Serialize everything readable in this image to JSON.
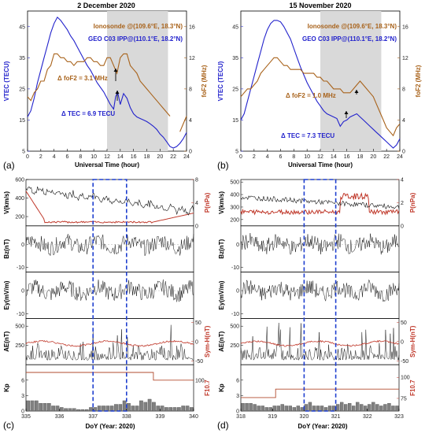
{
  "colors": {
    "vtec": "#2222cc",
    "fof2": "#a8621a",
    "shade": "#d9d9d9",
    "dashbox": "#1f3fcf",
    "left_axis": "#2a2acc",
    "right_axis": "#c0392b",
    "solar_right": "#b24b2f",
    "black": "#111111",
    "green": "#2e8b3e",
    "kp_bar": "#808080"
  },
  "chart_data": [
    {
      "type": "line",
      "panel": "(a)",
      "title": "2 December 2020",
      "xlabel": "Universal Time (hour)",
      "ylabel_left": "VTEC (TECU)",
      "ylabel_right": "foF2 (MHz)",
      "xlim": [
        0,
        24
      ],
      "ylim_left": [
        5,
        50
      ],
      "ylim_right": [
        0,
        18
      ],
      "xticks": [
        0,
        2,
        4,
        6,
        8,
        10,
        12,
        14,
        16,
        18,
        20,
        22,
        24
      ],
      "yticks_left": [
        5,
        15,
        25,
        35,
        45
      ],
      "yticks_right": [
        0,
        4,
        8,
        12,
        16
      ],
      "shade_range": [
        12,
        21.2
      ],
      "legend": [
        "Ionosonde @(109.6°E, 18.3°N)",
        "GEO C03 IPP@(110.1°E, 18.2°N)"
      ],
      "annotations": [
        "Δ foF2 = 3.1 MHz",
        "Δ TEC = 6.9 TECU"
      ],
      "series": [
        {
          "name": "GEO C03 IPP@(110.1°E, 18.2°N)",
          "axis": "left",
          "x": [
            0,
            0.5,
            1,
            1.5,
            2,
            2.5,
            3,
            3.5,
            4,
            4.5,
            5,
            5.5,
            6,
            6.5,
            7,
            7.5,
            8,
            8.5,
            9,
            9.5,
            10,
            10.5,
            11,
            11.5,
            12,
            12.5,
            13,
            13.3,
            13.6,
            14,
            14.5,
            15,
            15.5,
            16,
            16.5,
            17,
            17.5,
            18,
            18.5,
            19,
            19.5,
            20,
            20.5,
            21,
            21.5,
            22,
            22.5,
            23,
            23.5,
            24
          ],
          "values": [
            16,
            18,
            22,
            27,
            31,
            35,
            39,
            43,
            46,
            48,
            47,
            45.5,
            44,
            42,
            40.5,
            38.5,
            36.5,
            34.5,
            32.5,
            31,
            29,
            27,
            25.5,
            24,
            22,
            20,
            18.5,
            22.5,
            24,
            20,
            23.5,
            22,
            19,
            17,
            16,
            15.5,
            15,
            14.5,
            13.8,
            13,
            12,
            10.5,
            9.5,
            8,
            6.5,
            6,
            6.5,
            7.5,
            9,
            11
          ]
        },
        {
          "name": "Ionosonde @(109.6°E, 18.3°N)",
          "axis": "right",
          "x": [
            0,
            0.5,
            1,
            1.5,
            2,
            2.5,
            3,
            3.5,
            4,
            4.5,
            5,
            5.5,
            6,
            6.5,
            7,
            7.5,
            8,
            8.5,
            9,
            9.5,
            10,
            10.5,
            11,
            11.5,
            12,
            12.5,
            13,
            13.5,
            14,
            14.5,
            15,
            15.5,
            16,
            16.5,
            17,
            17.5,
            18,
            18.5,
            19,
            19.5,
            20,
            20.5,
            21,
            21.5,
            22,
            22.5,
            23,
            23.5,
            24
          ],
          "values": [
            7,
            6.5,
            7.5,
            8,
            9,
            9,
            10.5,
            11,
            12.5,
            12.5,
            12,
            12,
            11.5,
            11.5,
            11,
            11.5,
            11.5,
            11.5,
            12,
            12,
            11.5,
            11.5,
            11,
            11,
            12,
            12,
            11,
            10,
            12,
            12.5,
            12.5,
            11,
            10.5,
            10,
            9,
            8.5,
            8,
            7.5,
            7,
            6.5,
            6,
            5.5,
            5,
            4.5,
            null,
            null,
            2.5,
            3.5,
            4.5
          ]
        }
      ]
    },
    {
      "type": "line",
      "panel": "(b)",
      "title": "15 November 2020",
      "xlabel": "Universal Time (hour)",
      "ylabel_left": "VTEC (TECU)",
      "ylabel_right": "foF2 (MHz)",
      "xlim": [
        0,
        24
      ],
      "ylim_left": [
        5,
        50
      ],
      "ylim_right": [
        0,
        18
      ],
      "xticks": [
        0,
        2,
        4,
        6,
        8,
        10,
        12,
        14,
        16,
        18,
        20,
        22,
        24
      ],
      "yticks_left": [
        5,
        15,
        25,
        35,
        45
      ],
      "yticks_right": [
        0,
        4,
        8,
        12,
        16
      ],
      "shade_range": [
        12,
        21.2
      ],
      "legend": [
        "Ionosonde @(109.6°E, 18.3°N)",
        "GEO C03 IPP@(110.1°E, 18.2°N)"
      ],
      "annotations": [
        "Δ foF2 = 1.0 MHz",
        "Δ TEC = 7.3 TECU"
      ],
      "series": [
        {
          "name": "GEO C03 IPP@(110.1°E, 18.2°N)",
          "axis": "left",
          "x": [
            0,
            0.5,
            1,
            1.5,
            2,
            2.5,
            3,
            3.5,
            4,
            4.5,
            5,
            5.5,
            6,
            6.5,
            7,
            7.5,
            8,
            8.5,
            9,
            9.5,
            10,
            10.5,
            11,
            11.5,
            12,
            12.5,
            13,
            13.5,
            14,
            14.5,
            15,
            15.5,
            16,
            16.5,
            17,
            17.5,
            18,
            18.5,
            19,
            19.5,
            20,
            20.5,
            21,
            21.5,
            22,
            22.5,
            23,
            23.5,
            24
          ],
          "values": [
            15,
            17,
            21,
            25,
            29,
            33,
            37,
            41,
            44,
            46,
            47,
            47,
            46.5,
            45,
            43,
            41,
            38,
            35,
            32,
            29.5,
            27,
            25,
            23,
            21,
            19.5,
            18,
            17,
            16.5,
            16,
            15.5,
            13,
            14.5,
            15,
            16,
            16.5,
            17,
            16,
            15,
            14,
            13,
            12,
            11,
            10,
            9,
            8,
            7,
            6,
            7,
            9
          ]
        },
        {
          "name": "Ionosonde @(109.6°E, 18.3°N)",
          "axis": "right",
          "x": [
            0,
            0.5,
            1,
            1.5,
            2,
            2.5,
            3,
            3.5,
            4,
            4.5,
            5,
            5.5,
            6,
            6.5,
            7,
            7.5,
            8,
            8.5,
            9,
            9.5,
            10,
            10.5,
            11,
            11.5,
            12,
            12.5,
            13,
            13.5,
            14,
            14.5,
            15,
            15.5,
            16,
            16.5,
            17,
            17.5,
            18,
            18.5,
            19,
            19.5,
            20,
            20.5,
            21,
            21.5,
            22,
            22.5,
            23,
            23.5,
            24
          ],
          "values": [
            7,
            7.5,
            8,
            8,
            8.5,
            9,
            10,
            10.5,
            11,
            11.5,
            12,
            12,
            11.5,
            11,
            11,
            10.5,
            10.5,
            10.5,
            10.5,
            10,
            10,
            10,
            10,
            9.5,
            9.5,
            9,
            9,
            8.5,
            8,
            8,
            8,
            7.5,
            7.5,
            7.5,
            8,
            8.5,
            9,
            8.5,
            8,
            7.5,
            7,
            6,
            5,
            4,
            3,
            2.5,
            2,
            3,
            3.5
          ]
        }
      ]
    },
    {
      "type": "line",
      "panel": "(c)",
      "xlabel": "DoY  (Year: 2020)",
      "xlim": [
        335,
        340
      ],
      "xticks": [
        335,
        336,
        337,
        338,
        339,
        340
      ],
      "highlight_range": [
        337,
        338
      ],
      "subpanels": [
        {
          "ylabel_left": "V(km/s)",
          "ylabel_right": "P(nPa)",
          "yticks_left": [
            200,
            400,
            600
          ],
          "yticks_right": [
            0,
            4,
            8
          ],
          "ylim_left": [
            100,
            600
          ],
          "ylim_right": [
            0,
            8
          ]
        },
        {
          "ylabel_left": "Bz(nT)",
          "yticks_left": [
            -10,
            0
          ],
          "ylim_left": [
            -12,
            8
          ]
        },
        {
          "ylabel_left": "Ey(mV/m)",
          "yticks_left": [
            -10,
            0
          ],
          "ylim_left": [
            -12,
            8
          ]
        },
        {
          "ylabel_left": "AE(nT)",
          "ylabel_right": "Sym-H(nT)",
          "yticks_left": [
            250,
            500
          ],
          "yticks_right": [
            -50,
            0,
            50
          ],
          "ylim_left": [
            0,
            600
          ],
          "ylim_right": [
            -60,
            60
          ]
        },
        {
          "ylabel_left": "Kp",
          "ylabel_right": "F10.7",
          "yticks_left": [
            0,
            3,
            6
          ],
          "yticks_right": [
            100
          ],
          "ylim_left": [
            0,
            9
          ],
          "ylim_right": [
            60,
            120
          ]
        }
      ],
      "kp": {
        "x": [
          335,
          335.125,
          335.25,
          335.375,
          335.5,
          335.625,
          335.75,
          335.875,
          336,
          336.125,
          336.25,
          336.375,
          336.5,
          336.625,
          336.75,
          336.875,
          337,
          337.125,
          337.25,
          337.375,
          337.5,
          337.625,
          337.75,
          337.875,
          338,
          338.125,
          338.25,
          338.375,
          338.5,
          338.625,
          338.75,
          338.875,
          339,
          339.125,
          339.25,
          339.375,
          339.5,
          339.625,
          339.75,
          339.875
        ],
        "values": [
          2,
          2,
          2,
          1.5,
          1.5,
          1.5,
          1,
          1,
          0.7,
          0.5,
          0.5,
          0.5,
          0.3,
          0.3,
          0.3,
          0.7,
          0.7,
          1,
          1,
          1,
          1,
          1.3,
          1.3,
          2,
          1.5,
          1,
          1,
          2,
          1.7,
          2.3,
          1.7,
          1,
          1,
          0.7,
          0.7,
          0.7,
          0.7,
          1,
          1,
          0.7
        ]
      },
      "f107": {
        "x": [
          335,
          338.8,
          338.8,
          340
        ],
        "values": [
          110,
          110,
          100,
          100
        ]
      }
    },
    {
      "type": "line",
      "panel": "(d)",
      "xlabel": "DoY  (Year: 2020)",
      "xlim": [
        318,
        323
      ],
      "xticks": [
        318,
        319,
        320,
        321,
        322,
        323
      ],
      "highlight_range": [
        320,
        321
      ],
      "subpanels": [
        {
          "ylabel_left": "V(km/s)",
          "ylabel_right": "P(nPa)",
          "yticks_left": [
            200,
            300,
            400,
            500
          ],
          "yticks_right": [
            0,
            2,
            4
          ],
          "ylim_left": [
            150,
            520
          ],
          "ylim_right": [
            0,
            4
          ]
        },
        {
          "ylabel_left": "Bz(nT)",
          "yticks_left": [
            -10,
            0
          ],
          "ylim_left": [
            -12,
            8
          ]
        },
        {
          "ylabel_left": "Ey(mV/m)",
          "yticks_left": [
            -10,
            0
          ],
          "ylim_left": [
            -12,
            8
          ]
        },
        {
          "ylabel_left": "AE(nT)",
          "ylabel_right": "Sym-H(nT)",
          "yticks_left": [
            250,
            500
          ],
          "yticks_right": [
            -50,
            0,
            50
          ],
          "ylim_left": [
            0,
            600
          ],
          "ylim_right": [
            -60,
            60
          ]
        },
        {
          "ylabel_left": "Kp",
          "ylabel_right": "F10.7",
          "yticks_left": [
            0,
            3,
            6
          ],
          "yticks_right": [
            75,
            100
          ],
          "ylim_left": [
            0,
            9
          ],
          "ylim_right": [
            60,
            115
          ]
        }
      ],
      "kp": {
        "x": [
          318,
          318.125,
          318.25,
          318.375,
          318.5,
          318.625,
          318.75,
          318.875,
          319,
          319.125,
          319.25,
          319.375,
          319.5,
          319.625,
          319.75,
          319.875,
          320,
          320.125,
          320.25,
          320.375,
          320.5,
          320.625,
          320.75,
          320.875,
          321,
          321.125,
          321.25,
          321.375,
          321.5,
          321.625,
          321.75,
          321.875,
          322,
          322.125,
          322.25,
          322.375,
          322.5,
          322.625,
          322.75,
          322.875
        ],
        "values": [
          1.5,
          1.5,
          1.5,
          1.3,
          1,
          1,
          0.7,
          0.7,
          1,
          1,
          1.3,
          1,
          1,
          0.7,
          1,
          0.7,
          1.3,
          1.7,
          1,
          1,
          1,
          0.7,
          1,
          1,
          1.3,
          1.7,
          1.3,
          1.5,
          1,
          1.7,
          1.3,
          1,
          1.3,
          1.7,
          1.3,
          1,
          1.3,
          1.5,
          1,
          1
        ]
      },
      "f107": {
        "x": [
          318,
          319.1,
          319.1,
          323
        ],
        "values": [
          76,
          76,
          86,
          86
        ]
      }
    }
  ],
  "panel_letters": {
    "a": "(a)",
    "b": "(b)",
    "c": "(c)",
    "d": "(d)"
  }
}
